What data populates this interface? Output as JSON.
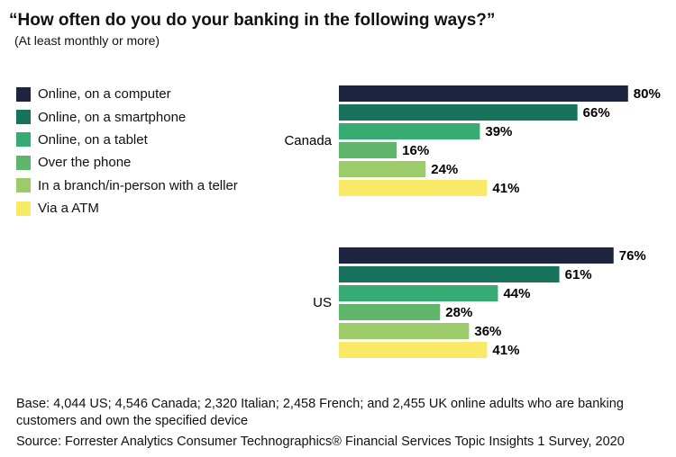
{
  "chart_data": {
    "type": "bar",
    "orientation": "horizontal",
    "title": "“How often do you do your banking in the following ways?”",
    "subtitle": "(At least monthly or more)",
    "categories": [
      "Canada",
      "US"
    ],
    "series": [
      {
        "name": "Online, on a computer",
        "color": "#1c2440",
        "values": [
          80,
          76
        ]
      },
      {
        "name": "Online, on a smartphone",
        "color": "#18735d",
        "values": [
          66,
          61
        ]
      },
      {
        "name": "Online, on a tablet",
        "color": "#36ac73",
        "values": [
          39,
          44
        ]
      },
      {
        "name": "Over the phone",
        "color": "#5fb66a",
        "values": [
          16,
          28
        ]
      },
      {
        "name": "In a branch/in-person with a teller",
        "color": "#9ccb6a",
        "values": [
          24,
          36
        ]
      },
      {
        "name": "Via a ATM",
        "color": "#f8ea66",
        "values": [
          41,
          41
        ]
      }
    ],
    "unit": "%",
    "legend_position": "left",
    "grid": false
  },
  "footnotes": {
    "base": "Base: 4,044 US; 4,546 Canada; 2,320 Italian; 2,458 French; and 2,455 UK online adults who are banking customers and own the specified device",
    "source": "Source: Forrester Analytics Consumer Technographics® Financial Services Topic Insights 1 Survey, 2020"
  }
}
